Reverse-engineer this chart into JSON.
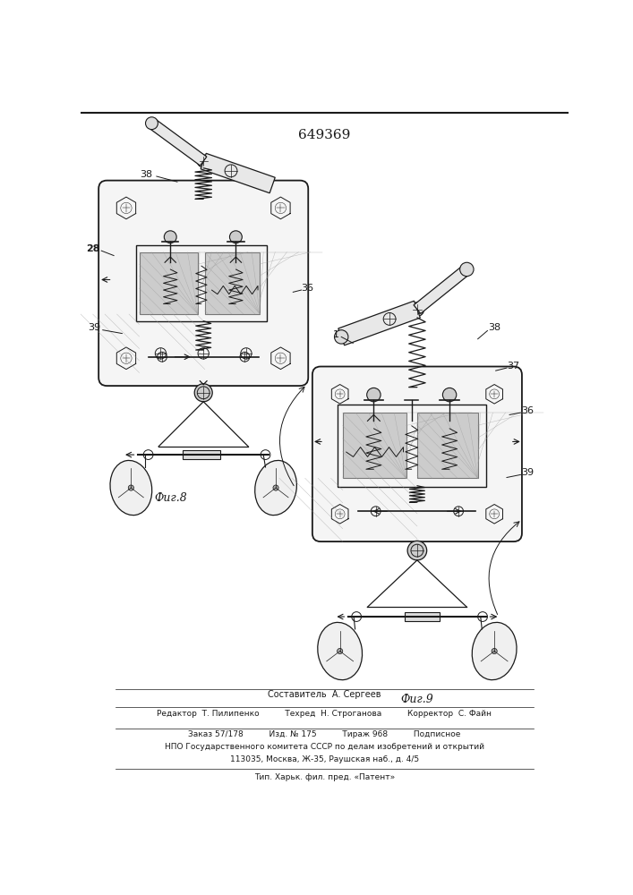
{
  "title": "649369",
  "fig_width": 7.07,
  "fig_height": 10.0,
  "bg_color": "#ffffff",
  "line_color": "#1a1a1a",
  "footer_lines": [
    "Составитель  А. Сергеев",
    "Редактор  Т. Пилипенко          Техред  Н. Строганова          Корректор  С. Файн",
    "Заказ 57/178          Изд. № 175          Тираж 968          Подписное",
    "НПО Государственного комитета СССР по делам изобретений и открытий",
    "113035, Москва, Ж-35, Раушская наб., д. 4/5",
    "Тип. Харьк. фил. пред. «Патент»"
  ],
  "fig8_label": "Фиг.8",
  "fig9_label": "Фиг.9"
}
